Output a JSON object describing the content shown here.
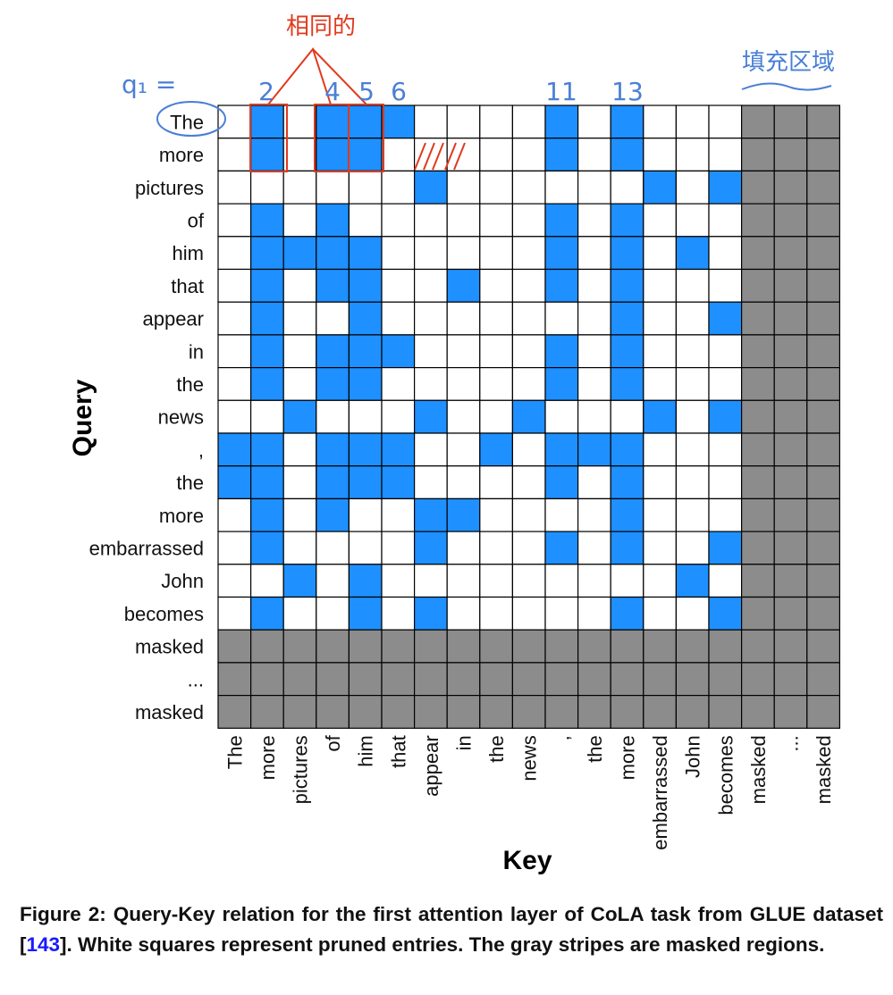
{
  "chart_data": {
    "type": "heatmap",
    "xlabel": "Key",
    "ylabel": "Query",
    "query_tokens": [
      "The",
      "more",
      "pictures",
      "of",
      "him",
      "that",
      "appear",
      "in",
      "the",
      "news",
      ",",
      "the",
      "more",
      "embarrassed",
      "John",
      "becomes",
      "masked",
      "...",
      "masked"
    ],
    "key_tokens": [
      "The",
      "more",
      "pictures",
      "of",
      "him",
      "that",
      "appear",
      "in",
      "the",
      "news",
      ",",
      "the",
      "more",
      "embarrassed",
      "John",
      "becomes",
      "masked",
      "...",
      "masked"
    ],
    "cell_states": {
      "0": "pruned",
      "1": "kept",
      "2": "masked"
    },
    "legend_text": {
      "pruned": "white",
      "kept": "blue",
      "masked": "gray"
    },
    "matrix": [
      [
        0,
        1,
        0,
        1,
        1,
        1,
        0,
        0,
        0,
        0,
        1,
        0,
        1,
        0,
        0,
        0,
        2,
        2,
        2
      ],
      [
        0,
        1,
        0,
        1,
        1,
        0,
        0,
        0,
        0,
        0,
        1,
        0,
        1,
        0,
        0,
        0,
        2,
        2,
        2
      ],
      [
        0,
        0,
        0,
        0,
        0,
        0,
        1,
        0,
        0,
        0,
        0,
        0,
        0,
        1,
        0,
        1,
        2,
        2,
        2
      ],
      [
        0,
        1,
        0,
        1,
        0,
        0,
        0,
        0,
        0,
        0,
        1,
        0,
        1,
        0,
        0,
        0,
        2,
        2,
        2
      ],
      [
        0,
        1,
        1,
        1,
        1,
        0,
        0,
        0,
        0,
        0,
        1,
        0,
        1,
        0,
        1,
        0,
        2,
        2,
        2
      ],
      [
        0,
        1,
        0,
        1,
        1,
        0,
        0,
        1,
        0,
        0,
        1,
        0,
        1,
        0,
        0,
        0,
        2,
        2,
        2
      ],
      [
        0,
        1,
        0,
        0,
        1,
        0,
        0,
        0,
        0,
        0,
        0,
        0,
        1,
        0,
        0,
        1,
        2,
        2,
        2
      ],
      [
        0,
        1,
        0,
        1,
        1,
        1,
        0,
        0,
        0,
        0,
        1,
        0,
        1,
        0,
        0,
        0,
        2,
        2,
        2
      ],
      [
        0,
        1,
        0,
        1,
        1,
        0,
        0,
        0,
        0,
        0,
        1,
        0,
        1,
        0,
        0,
        0,
        2,
        2,
        2
      ],
      [
        0,
        0,
        1,
        0,
        0,
        0,
        1,
        0,
        0,
        1,
        0,
        0,
        0,
        1,
        0,
        1,
        2,
        2,
        2
      ],
      [
        1,
        1,
        0,
        1,
        1,
        1,
        0,
        0,
        1,
        0,
        1,
        1,
        1,
        0,
        0,
        0,
        2,
        2,
        2
      ],
      [
        1,
        1,
        0,
        1,
        1,
        1,
        0,
        0,
        0,
        0,
        1,
        0,
        1,
        0,
        0,
        0,
        2,
        2,
        2
      ],
      [
        0,
        1,
        0,
        1,
        0,
        0,
        1,
        1,
        0,
        0,
        0,
        0,
        1,
        0,
        0,
        0,
        2,
        2,
        2
      ],
      [
        0,
        1,
        0,
        0,
        0,
        0,
        1,
        0,
        0,
        0,
        1,
        0,
        1,
        0,
        0,
        1,
        2,
        2,
        2
      ],
      [
        0,
        0,
        1,
        0,
        1,
        0,
        0,
        0,
        0,
        0,
        0,
        0,
        0,
        0,
        1,
        0,
        2,
        2,
        2
      ],
      [
        0,
        1,
        0,
        0,
        1,
        0,
        1,
        0,
        0,
        0,
        0,
        0,
        1,
        0,
        0,
        1,
        2,
        2,
        2
      ],
      [
        2,
        2,
        2,
        2,
        2,
        2,
        2,
        2,
        2,
        2,
        2,
        2,
        2,
        2,
        2,
        2,
        2,
        2,
        2
      ],
      [
        2,
        2,
        2,
        2,
        2,
        2,
        2,
        2,
        2,
        2,
        2,
        2,
        2,
        2,
        2,
        2,
        2,
        2,
        2
      ],
      [
        2,
        2,
        2,
        2,
        2,
        2,
        2,
        2,
        2,
        2,
        2,
        2,
        2,
        2,
        2,
        2,
        2,
        2,
        2
      ]
    ],
    "colors": {
      "kept": "#1e90ff",
      "pruned": "#ffffff",
      "masked": "#8c8c8c",
      "grid": "#000000",
      "annotation": "#e03a1e",
      "annotation_blue": "#4a7fd6"
    },
    "annotations": {
      "q_label": "q₁ =",
      "column_numbers": [
        "2",
        "4",
        "5",
        "6",
        "11",
        "13"
      ],
      "same_label": "相同的",
      "masked_label": "填充区域"
    }
  },
  "caption": {
    "prefix": "Figure 2: Query-Key relation for the first attention layer of CoLA task from GLUE dataset [",
    "ref": "143",
    "suffix": "]. White squares represent pruned entries. The gray stripes are masked regions."
  }
}
